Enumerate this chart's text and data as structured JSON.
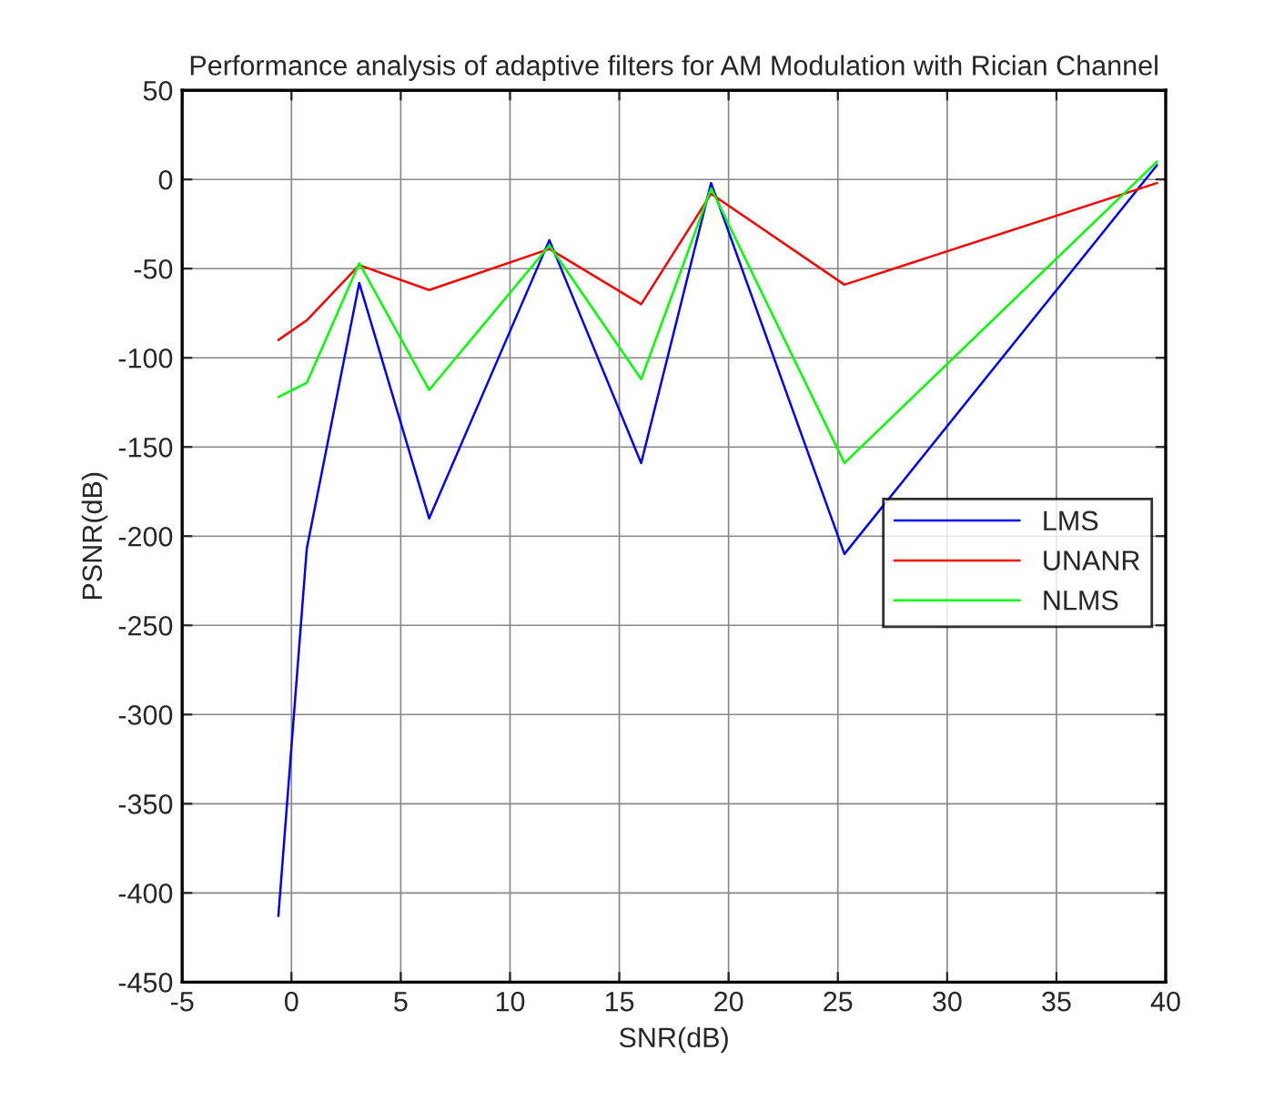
{
  "chart_data": {
    "type": "line",
    "title": "Performance analysis of adaptive filters for AM Modulation with Rician Channel",
    "xlabel": "SNR(dB)",
    "ylabel": "PSNR(dB)",
    "x": [
      -0.6,
      0.7,
      3.1,
      6.3,
      11.8,
      16.0,
      19.2,
      25.3,
      39.6
    ],
    "series": [
      {
        "name": "LMS",
        "color": "#0000ff",
        "values": [
          -413,
          -207,
          -58,
          -190,
          -34,
          -159,
          -2,
          -210,
          8
        ]
      },
      {
        "name": "UNANR",
        "color": "#ff0000",
        "values": [
          -90,
          -79,
          -48,
          -62,
          -39,
          -70,
          -8,
          -59,
          -2
        ]
      },
      {
        "name": "NLMS",
        "color": "#00ff00",
        "values": [
          -122,
          -114,
          -47,
          -118,
          -37,
          -112,
          -5,
          -159,
          10
        ]
      }
    ],
    "xlim": [
      -5,
      40
    ],
    "xticks": [
      -5,
      0,
      5,
      10,
      15,
      20,
      25,
      30,
      35,
      40
    ],
    "ylim": [
      -450,
      50
    ],
    "yticks": [
      -450,
      -400,
      -350,
      -300,
      -250,
      -200,
      -150,
      -100,
      -50,
      0,
      50
    ],
    "grid": true,
    "legend": "right"
  }
}
